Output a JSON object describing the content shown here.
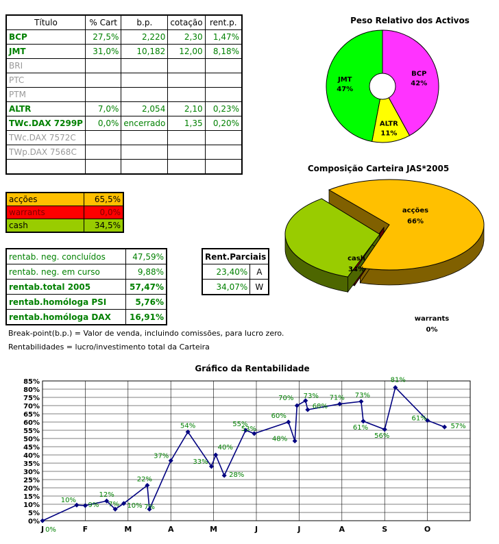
{
  "main_table": {
    "headers": [
      "Título",
      "% Cart",
      "b.p.",
      "cotação",
      "rent.p."
    ],
    "rows": [
      {
        "name": "BCP",
        "cart": "27,5%",
        "bp": "2,220",
        "cot": "2,30",
        "rent": "1,47%",
        "style": "g"
      },
      {
        "name": "JMT",
        "cart": "31,0%",
        "bp": "10,182",
        "cot": "12,00",
        "rent": "8,18%",
        "style": "g"
      },
      {
        "name": "BRI",
        "cart": "",
        "bp": "",
        "cot": "",
        "rent": "",
        "style": "gray"
      },
      {
        "name": "PTC",
        "cart": "",
        "bp": "",
        "cot": "",
        "rent": "",
        "style": "gray"
      },
      {
        "name": "PTM",
        "cart": "",
        "bp": "",
        "cot": "",
        "rent": "",
        "style": "gray"
      },
      {
        "name": "ALTR",
        "cart": "7,0%",
        "bp": "2,054",
        "cot": "2,10",
        "rent": "0,23%",
        "style": "g"
      },
      {
        "name": "TWc.DAX 7299P",
        "cart": "0,0%",
        "bp": "encerrado",
        "cot": "1,35",
        "rent": "0,20%",
        "style": "g"
      },
      {
        "name": "TWc.DAX 7572C",
        "cart": "",
        "bp": "",
        "cot": "",
        "rent": "",
        "style": "gray"
      },
      {
        "name": "TWp.DAX 7568C",
        "cart": "",
        "bp": "",
        "cot": "",
        "rent": "",
        "style": "gray"
      },
      {
        "name": "",
        "cart": "",
        "bp": "",
        "cot": "",
        "rent": "",
        "style": ""
      }
    ]
  },
  "allocation": [
    {
      "label": "acções",
      "value": "65,5%",
      "bg": "#ffc000",
      "fg": "#000000"
    },
    {
      "label": "warrants",
      "value": "0,0%",
      "bg": "#ff0000",
      "fg": "#800000"
    },
    {
      "label": "cash",
      "value": "34,5%",
      "bg": "#99cc00",
      "fg": "#000000"
    }
  ],
  "rentab": [
    {
      "label": "rentab. neg. concluídos",
      "value": "47,59%",
      "bold": false
    },
    {
      "label": "rentab. neg. em curso",
      "value": "9,88%",
      "bold": false
    },
    {
      "label": "rentab.total 2005",
      "value": "57,47%",
      "bold": true
    },
    {
      "label": "rentab.homóloga PSI",
      "value": "5,76%",
      "bold": true
    },
    {
      "label": "rentab.homóloga DAX",
      "value": "16,91%",
      "bold": true
    }
  ],
  "parciais": {
    "header": "Rent.Parciais",
    "rows": [
      {
        "value": "23,40%",
        "code": "A"
      },
      {
        "value": "34,07%",
        "code": "W"
      }
    ]
  },
  "notes": {
    "bp": "Break-point(b.p.) = Valor de venda, incluindo comissões, para lucro zero.",
    "rent": "Rentabilidades = lucro/investimento total da Carteira"
  },
  "chart_data": [
    {
      "type": "pie",
      "title": "Peso Relativo dos Activos",
      "slices": [
        {
          "label": "BCP",
          "pct": "42%",
          "value": 42,
          "color": "#ff33ff"
        },
        {
          "label": "ALTR",
          "pct": "11%",
          "value": 11,
          "color": "#ffff00"
        },
        {
          "label": "JMT",
          "pct": "47%",
          "value": 47,
          "color": "#00ff00"
        }
      ]
    },
    {
      "type": "pie",
      "title": "Composição Carteira JAS*2005",
      "slices": [
        {
          "label": "acções",
          "pct": "66%",
          "value": 66,
          "color": "#ffc000"
        },
        {
          "label": "warrants",
          "pct": "0%",
          "value": 0,
          "color": "#cc0000"
        },
        {
          "label": "cash",
          "pct": "34%",
          "value": 34,
          "color": "#99cc00"
        }
      ]
    },
    {
      "type": "line",
      "title": "Gráfico da Rentabilidade",
      "x_ticks": [
        "J",
        "F",
        "M",
        "A",
        "M",
        "J",
        "J",
        "A",
        "S",
        "O"
      ],
      "ylim": [
        0,
        85
      ],
      "y_ticks": [
        "0%",
        "5%",
        "10%",
        "15%",
        "20%",
        "25%",
        "30%",
        "35%",
        "40%",
        "45%",
        "50%",
        "55%",
        "60%",
        "65%",
        "70%",
        "75%",
        "80%",
        "85%"
      ],
      "series_color": "#000080",
      "label_color": "#008000",
      "points": [
        {
          "x": 0.0,
          "y": 0,
          "label": "0%"
        },
        {
          "x": 0.8,
          "y": 9.5,
          "label": "10%"
        },
        {
          "x": 1.0,
          "y": 9.2,
          "label": "9%"
        },
        {
          "x": 1.5,
          "y": 12,
          "label": "12%"
        },
        {
          "x": 1.7,
          "y": 7,
          "label": "7%"
        },
        {
          "x": 1.9,
          "y": 10.5,
          "label": "10%"
        },
        {
          "x": 2.45,
          "y": 21.5,
          "label": "22%"
        },
        {
          "x": 2.5,
          "y": 7,
          "label": "7%"
        },
        {
          "x": 3.0,
          "y": 36.5,
          "label": "37%"
        },
        {
          "x": 3.4,
          "y": 54,
          "label": "54%"
        },
        {
          "x": 3.95,
          "y": 33,
          "label": "33%"
        },
        {
          "x": 4.05,
          "y": 40,
          "label": "40%"
        },
        {
          "x": 4.25,
          "y": 27.5,
          "label": "28%"
        },
        {
          "x": 4.75,
          "y": 55,
          "label": "55%"
        },
        {
          "x": 4.95,
          "y": 53,
          "label": "53%"
        },
        {
          "x": 5.75,
          "y": 60,
          "label": "60%"
        },
        {
          "x": 5.9,
          "y": 48.5,
          "label": "48%"
        },
        {
          "x": 5.95,
          "y": 70,
          "label": "70%"
        },
        {
          "x": 6.15,
          "y": 73,
          "label": "73%"
        },
        {
          "x": 6.2,
          "y": 67.5,
          "label": "68%"
        },
        {
          "x": 6.95,
          "y": 71,
          "label": "71%"
        },
        {
          "x": 7.45,
          "y": 72.5,
          "label": "73%"
        },
        {
          "x": 7.5,
          "y": 60.5,
          "label": "61%"
        },
        {
          "x": 8.0,
          "y": 55.5,
          "label": "56%"
        },
        {
          "x": 8.25,
          "y": 81,
          "label": "81%"
        },
        {
          "x": 9.0,
          "y": 61,
          "label": "61%"
        },
        {
          "x": 9.4,
          "y": 57,
          "label": "57%"
        }
      ]
    }
  ]
}
